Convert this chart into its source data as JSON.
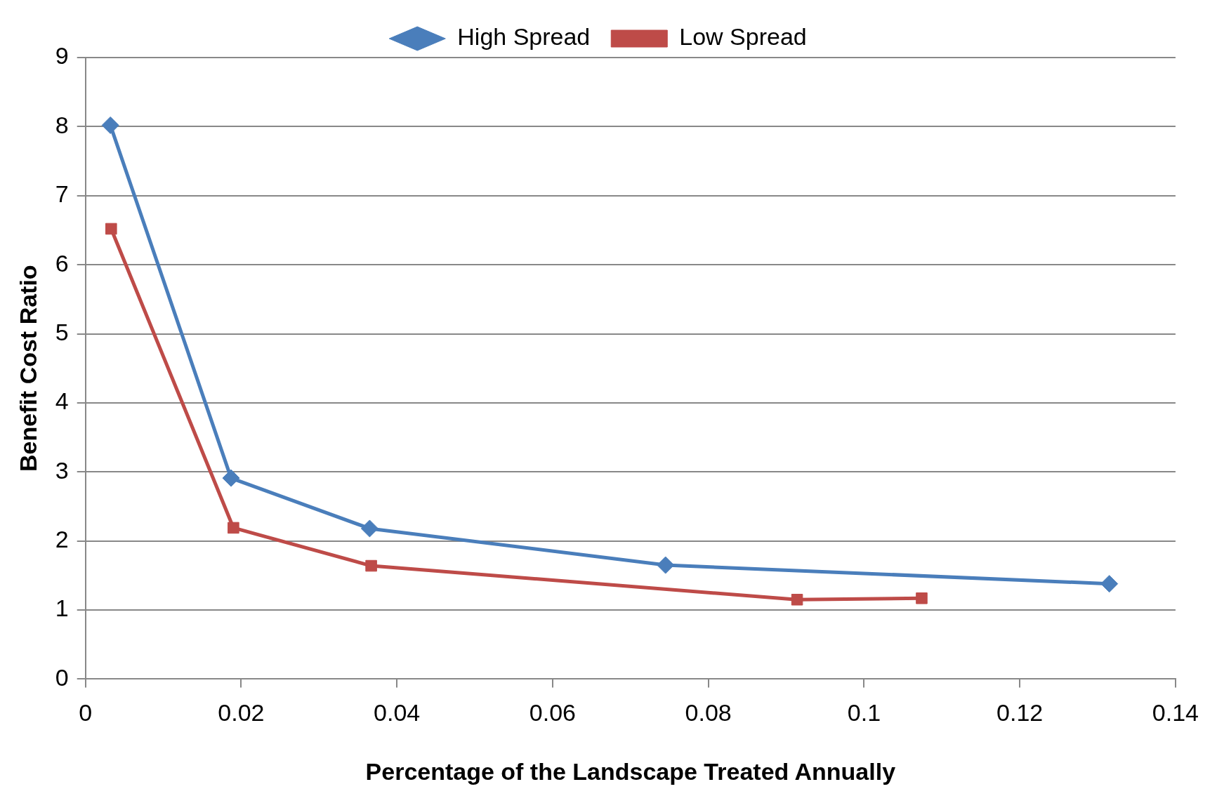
{
  "chart_data": {
    "type": "line",
    "xlabel": "Percentage of the Landscape Treated Annually",
    "ylabel": "Benefit Cost Ratio",
    "xlim": [
      0,
      0.14
    ],
    "xticks": [
      0,
      0.02,
      0.04,
      0.06,
      0.08,
      0.1,
      0.12,
      0.14
    ],
    "ylim": [
      0,
      9
    ],
    "yticks": [
      0,
      1,
      2,
      3,
      4,
      5,
      6,
      7,
      8,
      9
    ],
    "grid": "y",
    "legend": "top",
    "line_style": "solid",
    "series": [
      {
        "name": "High Spread",
        "color": "#4a7ebb",
        "marker": "diamond",
        "x": [
          0.0032,
          0.0187,
          0.0365,
          0.0745,
          0.1315
        ],
        "values": [
          8.02,
          2.91,
          2.18,
          1.65,
          1.38
        ]
      },
      {
        "name": "Low Spread",
        "color": "#be4b48",
        "marker": "square",
        "x": [
          0.0033,
          0.019,
          0.0367,
          0.0914,
          0.1074
        ],
        "values": [
          6.52,
          2.19,
          1.64,
          1.15,
          1.17
        ]
      }
    ]
  }
}
